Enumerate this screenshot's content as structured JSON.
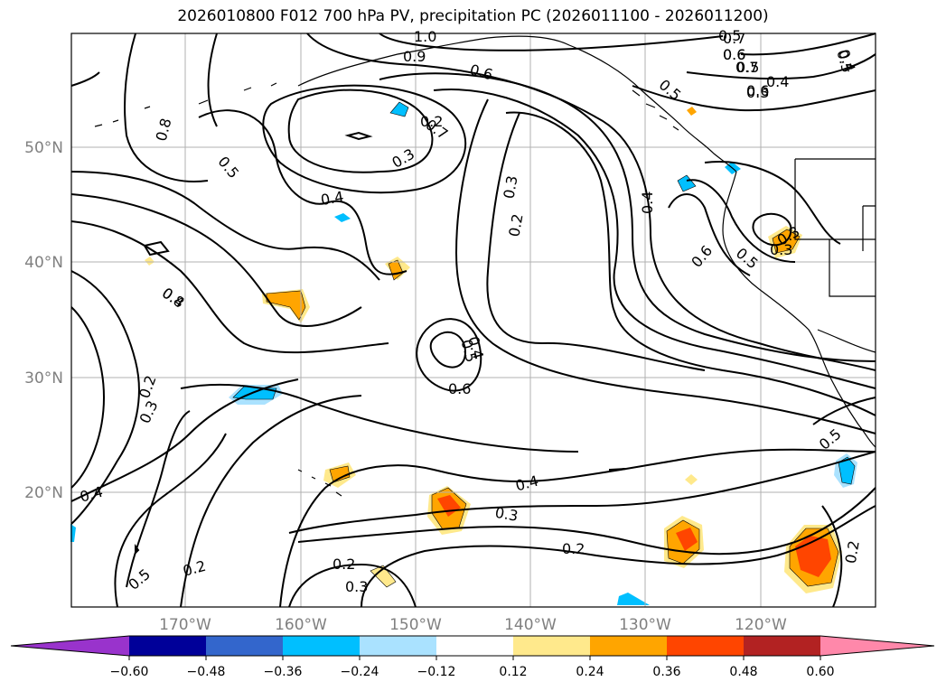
{
  "title": "2026010800 F012 700 hPa PV, precipitation PC (2026011100 - 2026011200)",
  "map": {
    "lat_labels": [
      "50°N",
      "40°N",
      "30°N",
      "20°N"
    ],
    "lon_labels": [
      "170°W",
      "160°W",
      "150°W",
      "140°W",
      "130°W",
      "120°W"
    ],
    "contour_labels": [
      "1.0",
      "0.9",
      "0.8",
      "0.7",
      "0.6",
      "0.5",
      "0.4",
      "0.3",
      "0.2",
      "0.5",
      "0.6",
      "0.8",
      "0.7",
      "0.6",
      "0.5",
      "0.4",
      "0.3",
      "0.2",
      "0.3",
      "0.2",
      "0.6",
      "0.5",
      "0.4",
      "0.4",
      "0.3",
      "0.2",
      "0.2",
      "0.3",
      "0.5",
      "0.4",
      "0.3",
      "0.2",
      "0.6",
      "0.5",
      "0.4",
      "0.3",
      "0.7",
      "0.6",
      "0.5",
      "0.4",
      "0.3",
      "0.5",
      "0.2",
      "0.5",
      "0.4"
    ]
  },
  "colorbar": {
    "ticks": [
      "−0.60",
      "−0.48",
      "−0.36",
      "−0.24",
      "−0.12",
      "0.12",
      "0.24",
      "0.36",
      "0.48",
      "0.60"
    ],
    "colors": [
      "#9933cc",
      "#000099",
      "#3366cc",
      "#00bfff",
      "#aae2ff",
      "#ffffff",
      "#ffe98c",
      "#ffa500",
      "#ff4500",
      "#b22222",
      "#ff88aa"
    ]
  }
}
